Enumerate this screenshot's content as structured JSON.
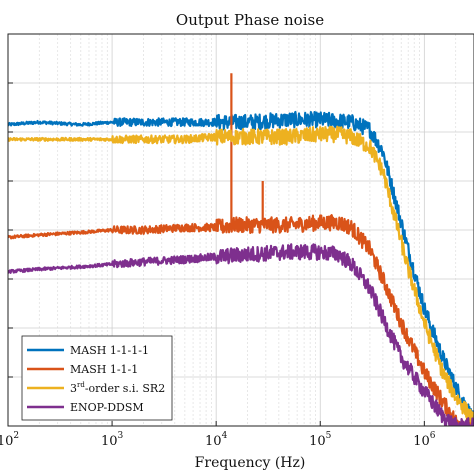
{
  "chart_data": {
    "type": "line",
    "title": "Output Phase noise",
    "xlabel": "Frequency (Hz)",
    "ylabel": "",
    "xscale": "log",
    "xlim": [
      100,
      3000000
    ],
    "ylim": [
      -8,
      0
    ],
    "grid": true,
    "legend_position": "bottom-left",
    "x_ticks": [
      {
        "base": "10",
        "exp": "2",
        "value": 100
      },
      {
        "base": "10",
        "exp": "3",
        "value": 1000
      },
      {
        "base": "10",
        "exp": "4",
        "value": 10000
      },
      {
        "base": "10",
        "exp": "5",
        "value": 100000
      },
      {
        "base": "10",
        "exp": "6",
        "value": 1000000
      }
    ],
    "series": [
      {
        "name": "MASH 1-1-1-1",
        "color": "#0072BD",
        "x": [
          100,
          200,
          500,
          1000,
          2000,
          5000,
          10000,
          20000,
          50000,
          100000,
          150000,
          200000,
          300000,
          400000,
          500000,
          700000,
          1000000,
          1500000,
          2000000,
          3000000
        ],
        "y": [
          -1.85,
          -1.8,
          -1.85,
          -1.8,
          -1.8,
          -1.8,
          -1.8,
          -1.8,
          -1.75,
          -1.75,
          -1.78,
          -1.8,
          -1.95,
          -2.4,
          -3.2,
          -4.4,
          -5.6,
          -6.6,
          -7.2,
          -7.9
        ]
      },
      {
        "name": "MASH 1-1-1",
        "color": "#D95319",
        "x": [
          100,
          200,
          500,
          1000,
          2000,
          5000,
          10000,
          15000,
          20000,
          30000,
          50000,
          100000,
          150000,
          200000,
          300000,
          400000,
          600000,
          1000000,
          1500000,
          2000000,
          3000000
        ],
        "y": [
          -4.15,
          -4.1,
          -4.05,
          -4.0,
          -4.0,
          -3.95,
          -3.95,
          -3.9,
          -3.9,
          -3.9,
          -3.9,
          -3.85,
          -3.85,
          -3.95,
          -4.4,
          -5.0,
          -5.9,
          -6.9,
          -7.5,
          -7.9,
          -8.0
        ],
        "spikes": [
          {
            "x": 14000,
            "y": -0.8
          },
          {
            "x": 28000,
            "y": -3.0
          }
        ]
      },
      {
        "name": "3rd-order s.i. SR2",
        "color": "#EDB120",
        "x": [
          100,
          200,
          500,
          1000,
          2000,
          5000,
          10000,
          20000,
          50000,
          100000,
          150000,
          200000,
          300000,
          400000,
          500000,
          700000,
          1000000,
          1500000,
          2000000,
          3000000
        ],
        "y": [
          -2.15,
          -2.15,
          -2.15,
          -2.15,
          -2.15,
          -2.15,
          -2.1,
          -2.1,
          -2.1,
          -2.05,
          -2.05,
          -2.1,
          -2.3,
          -2.8,
          -3.6,
          -4.8,
          -5.9,
          -6.9,
          -7.4,
          -7.9
        ]
      },
      {
        "name": "ENOP-DDSM",
        "color": "#7E2F8E",
        "x": [
          100,
          200,
          500,
          1000,
          2000,
          5000,
          10000,
          20000,
          50000,
          100000,
          150000,
          200000,
          300000,
          400000,
          600000,
          1000000,
          1500000,
          2000000,
          3000000
        ],
        "y": [
          -4.85,
          -4.8,
          -4.75,
          -4.7,
          -4.65,
          -4.6,
          -4.55,
          -4.5,
          -4.45,
          -4.45,
          -4.5,
          -4.7,
          -5.2,
          -5.8,
          -6.6,
          -7.3,
          -7.8,
          -8.0,
          -8.0
        ]
      }
    ],
    "legend": [
      {
        "label": "MASH 1-1-1-1",
        "color": "#0072BD"
      },
      {
        "label": "MASH 1-1-1",
        "color": "#D95319"
      },
      {
        "label_pre": "3",
        "label_sup": "rd",
        "label_post": "-order s.i.  SR2",
        "color": "#EDB120"
      },
      {
        "label": "ENOP-DDSM",
        "color": "#7E2F8E"
      }
    ]
  }
}
